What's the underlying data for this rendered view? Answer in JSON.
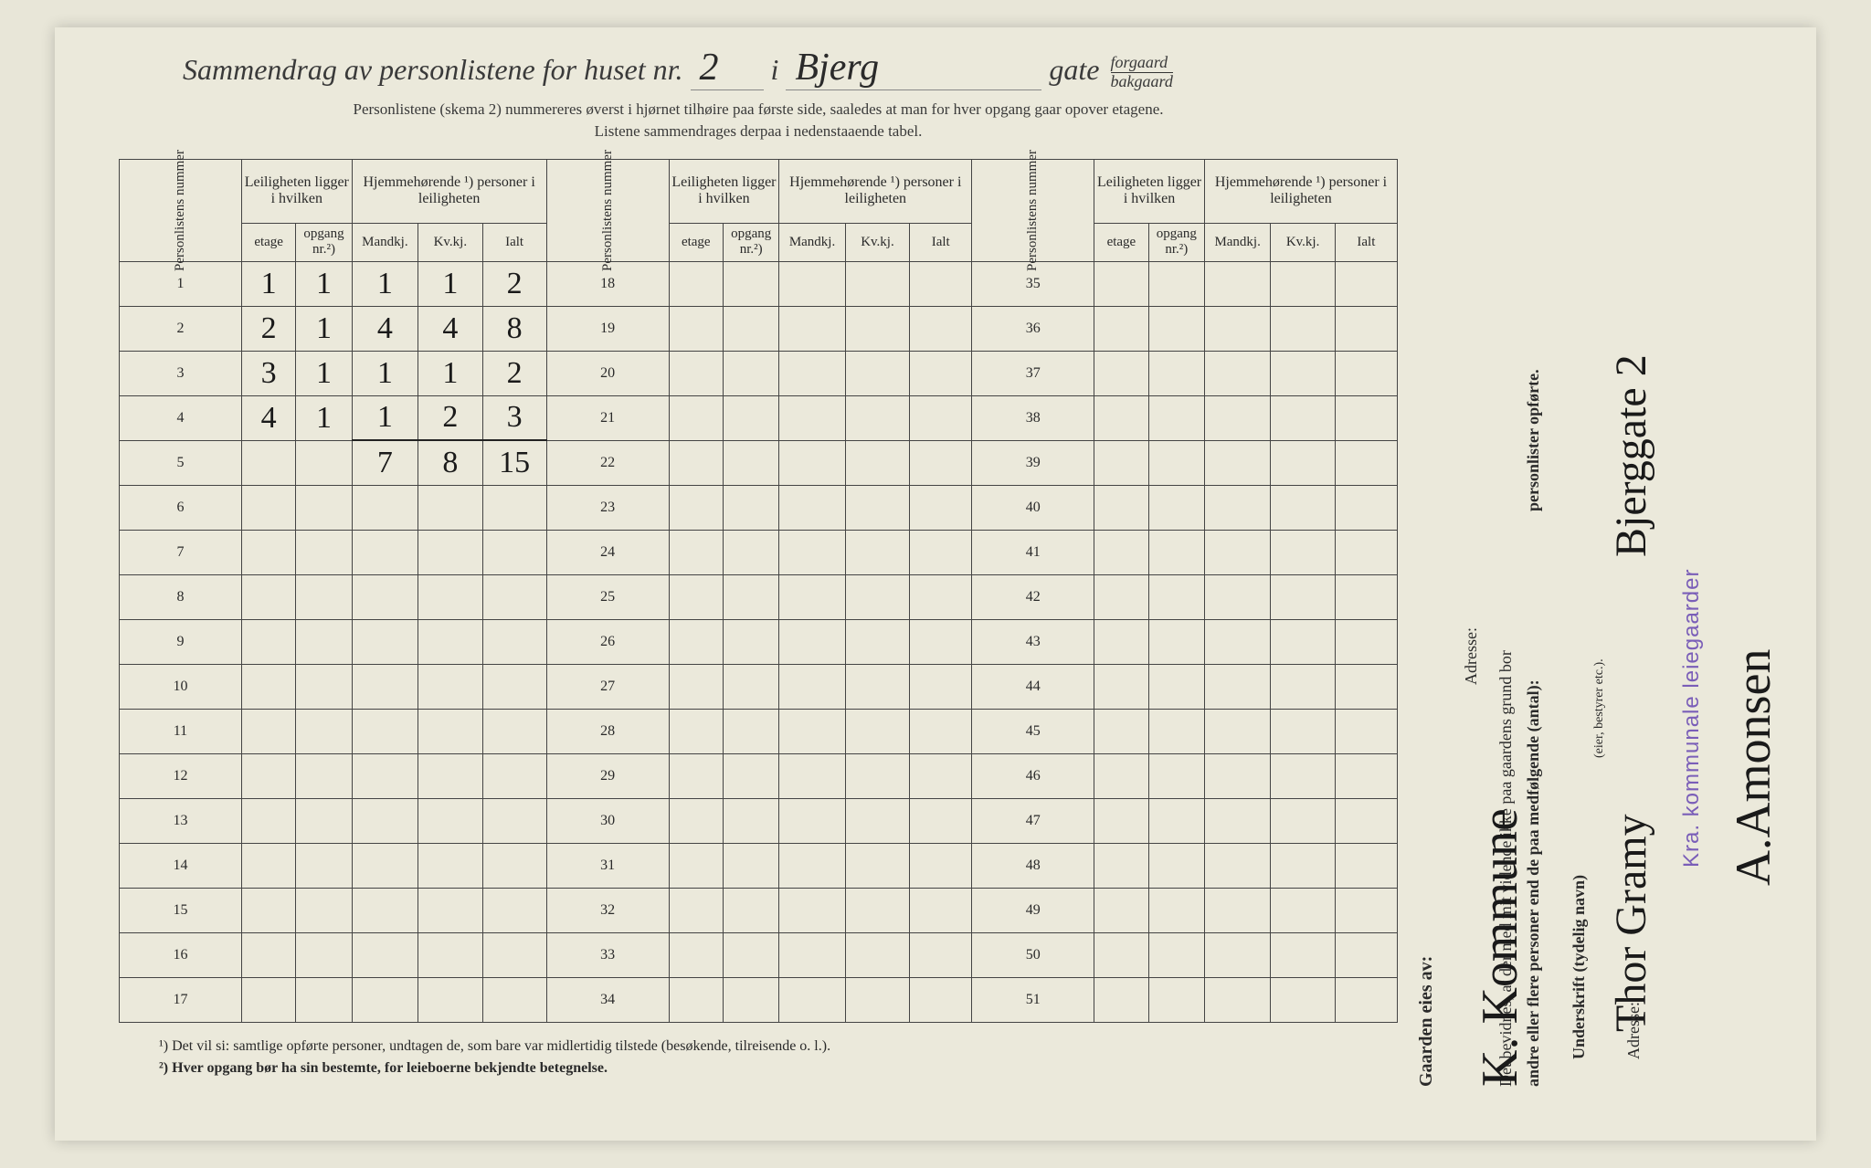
{
  "title": {
    "prefix": "Sammendrag av personlistene for huset nr.",
    "house_nr": "2",
    "mid": "i",
    "street": "Bjerg",
    "suffix": "gate",
    "forgaard": "forgaard",
    "bakgaard": "bakgaard"
  },
  "subtitle": {
    "line1": "Personlistene (skema 2) nummereres øverst i hjørnet tilhøire paa første side, saaledes at man for hver opgang gaar opover etagene.",
    "line2": "Listene sammendrages derpaa i nedenstaaende tabel."
  },
  "headers": {
    "personlistens_nummer": "Personlistens nummer",
    "leiligheten": "Leiligheten ligger i hvilken",
    "hjemmehorende": "Hjemmehørende ¹) personer i leiligheten",
    "etage": "etage",
    "opgang": "opgang nr.²)",
    "mandkj": "Mandkj.",
    "kvkj": "Kv.kj.",
    "ialt": "Ialt"
  },
  "row_ranges": {
    "block1": [
      1,
      2,
      3,
      4,
      5,
      6,
      7,
      8,
      9,
      10,
      11,
      12,
      13,
      14,
      15,
      16,
      17
    ],
    "block2": [
      18,
      19,
      20,
      21,
      22,
      23,
      24,
      25,
      26,
      27,
      28,
      29,
      30,
      31,
      32,
      33,
      34
    ],
    "block3": [
      35,
      36,
      37,
      38,
      39,
      40,
      41,
      42,
      43,
      44,
      45,
      46,
      47,
      48,
      49,
      50,
      51
    ]
  },
  "data_rows": [
    {
      "n": 1,
      "etage": "1",
      "opgang": "1",
      "m": "1",
      "k": "1",
      "i": "2"
    },
    {
      "n": 2,
      "etage": "2",
      "opgang": "1",
      "m": "4",
      "k": "4",
      "i": "8"
    },
    {
      "n": 3,
      "etage": "3",
      "opgang": "1",
      "m": "1",
      "k": "1",
      "i": "2"
    },
    {
      "n": 4,
      "etage": "4",
      "opgang": "1",
      "m": "1",
      "k": "2",
      "i": "3"
    }
  ],
  "totals": {
    "m": "7",
    "k": "8",
    "i": "15"
  },
  "footnotes": {
    "f1": "¹)  Det vil si: samtlige opførte personer, undtagen de, som bare var midlertidig tilstede (besøkende, tilreisende o. l.).",
    "f2": "²)  Hver opgang bør ha sin bestemte, for leieboerne bekjendte betegnelse."
  },
  "right": {
    "bevidnes1": "Det bevidnes, at der med mit vidende ikke paa gaardens grund bor",
    "bevidnes2": "andre eller flere personer end de paa medfølgende (antal):",
    "bevidnes3": "personlister opførte.",
    "underskrift": "Underskrift (tydelig navn)",
    "eier": "(eier, bestyrer etc.).",
    "adresse": "Adresse:",
    "hand_name": "Thor Gramy",
    "hand_addr": "Bjerggate 2",
    "stamp": "Kra. kommunale leiegaarder",
    "signature": "A.Amonsen"
  },
  "left": {
    "gaarden": "Gaarden eies av:",
    "owner": "K. Kommune",
    "adresse": "Adresse:"
  },
  "style": {
    "bg": "#ebe9db",
    "ink": "#2a2a2a",
    "hand_ink": "#1a1a1a",
    "stamp_color": "#7a5eb8",
    "border": "#444"
  }
}
